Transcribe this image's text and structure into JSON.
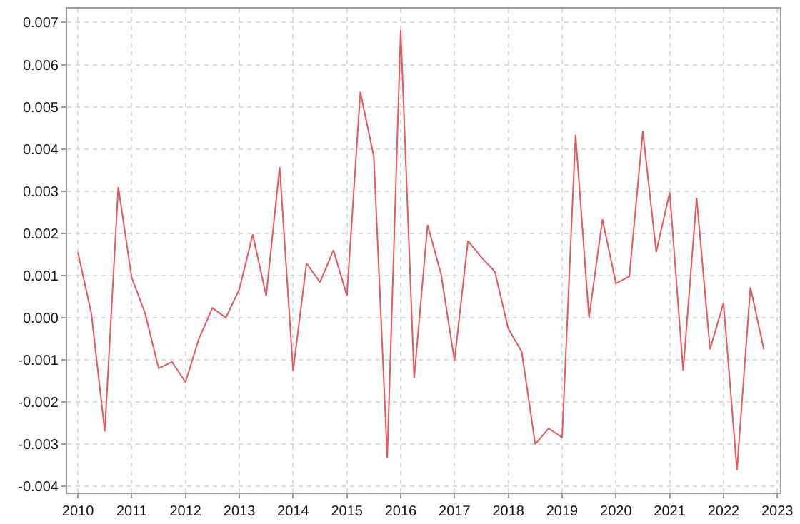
{
  "chart_data": {
    "type": "line",
    "x": [
      2010,
      2010.25,
      2010.5,
      2010.75,
      2011,
      2011.25,
      2011.5,
      2011.75,
      2012,
      2012.25,
      2012.5,
      2012.75,
      2013,
      2013.25,
      2013.5,
      2013.75,
      2014,
      2014.25,
      2014.5,
      2014.75,
      2015,
      2015.25,
      2015.5,
      2015.75,
      2016,
      2016.25,
      2016.5,
      2016.75,
      2017,
      2017.25,
      2017.5,
      2017.75,
      2018,
      2018.25,
      2018.5,
      2018.75,
      2019,
      2019.25,
      2019.5,
      2019.75,
      2020,
      2020.25,
      2020.5,
      2020.75,
      2021,
      2021.25,
      2021.5,
      2021.75,
      2022,
      2022.25,
      2022.5,
      2022.75
    ],
    "series": [
      {
        "color": "#e8585b",
        "values": [
          0.00155,
          0.0001,
          -0.0027,
          0.0031,
          0.00095,
          0.0001,
          -0.0012,
          -0.00105,
          -0.00153,
          -0.0005,
          0.00023,
          0,
          0.00067,
          0.00197,
          0.00052,
          0.00357,
          -0.00126,
          0.00129,
          0.00084,
          0.0016,
          0.00052,
          0.00535,
          0.00382,
          -0.00333,
          0.00682,
          -0.00143,
          0.0022,
          0.00103,
          -0.00102,
          0.00182,
          0.00143,
          0.00109,
          -0.00026,
          -0.00081,
          -0.003,
          -0.00263,
          -0.00284,
          0.00434,
          0,
          0.00233,
          0.00081,
          0.00098,
          0.00442,
          0.00156,
          0.00297,
          -0.00126,
          0.00284,
          -0.00075,
          0.00035,
          -0.00362,
          0.00072,
          -0.00075
        ]
      }
    ],
    "xlim": [
      2009.8,
      2023.05
    ],
    "xticks": [
      2010,
      2011,
      2012,
      2013,
      2014,
      2015,
      2016,
      2017,
      2018,
      2019,
      2020,
      2021,
      2022,
      2023
    ],
    "ylim": [
      -0.00415,
      0.00733
    ],
    "yticks": [
      -0.004,
      -0.003,
      -0.002,
      -0.001,
      {
        "value": 0,
        "label": "0.000"
      },
      0.001,
      0.002,
      0.003,
      0.004,
      0.005,
      0.006,
      0.007
    ],
    "grid": true,
    "marker": "none",
    "line_style": "solid"
  }
}
